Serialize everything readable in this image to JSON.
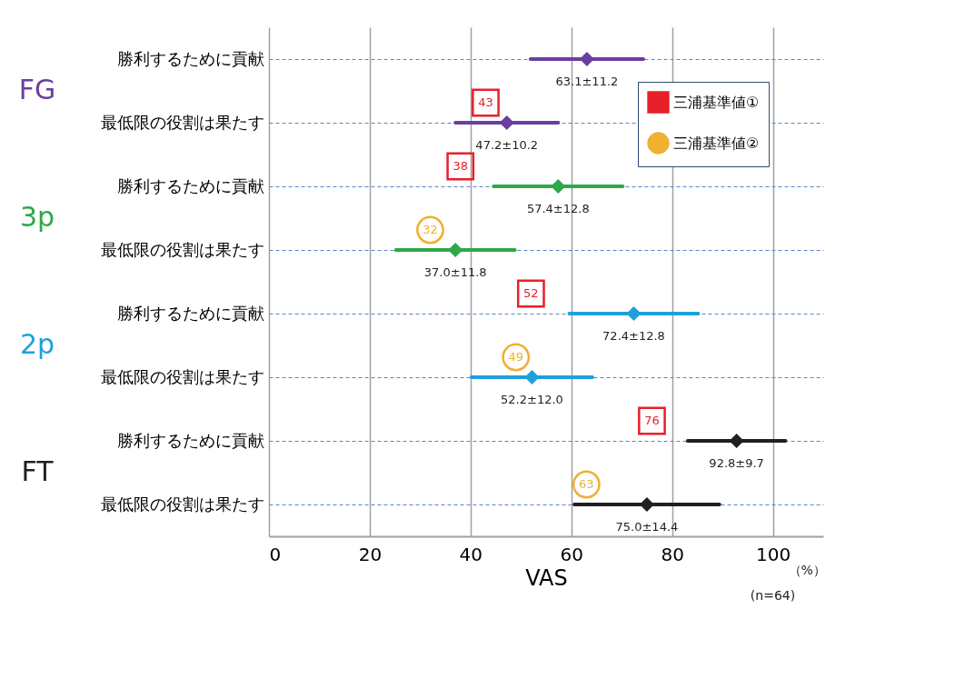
{
  "chart_data": {
    "type": "scatter",
    "orientation": "horizontal",
    "xlabel": "VAS",
    "xlim": [
      0,
      110
    ],
    "xticks": [
      0,
      20,
      40,
      60,
      80,
      100
    ],
    "grid": true,
    "marker": "diamond",
    "legend": "top right",
    "categories": [
      "勝利するために貢献",
      "最低限の役割は果たす",
      "勝利するために貢献",
      "最低限の役割は果たす",
      "勝利するために貢献",
      "最低限の役割は果たす",
      "勝利するために貢献",
      "最低限の役割は果たす"
    ],
    "series": [
      {
        "name": "FG",
        "color": "#6a3fa0",
        "values": [
          63.1,
          47.2,
          null,
          null,
          null,
          null,
          null,
          null
        ],
        "errors": [
          11.2,
          10.2,
          null,
          null,
          null,
          null,
          null,
          null
        ],
        "value_labels": [
          "63.1±11.2",
          "47.2±10.2",
          null,
          null,
          null,
          null,
          null,
          null
        ]
      },
      {
        "name": "3p",
        "color": "#2ea84a",
        "values": [
          null,
          null,
          57.4,
          37.0,
          null,
          null,
          null,
          null
        ],
        "errors": [
          null,
          null,
          12.8,
          11.8,
          null,
          null,
          null,
          null
        ],
        "value_labels": [
          null,
          null,
          "57.4±12.8",
          "37.0±11.8",
          null,
          null,
          null,
          null
        ]
      },
      {
        "name": "2p",
        "color": "#1ea0dc",
        "values": [
          null,
          null,
          null,
          null,
          72.4,
          52.2,
          null,
          null
        ],
        "errors": [
          null,
          null,
          null,
          null,
          12.8,
          12.0,
          null,
          null
        ],
        "value_labels": [
          null,
          null,
          null,
          null,
          "72.4±12.8",
          "52.2±12.0",
          null,
          null
        ]
      },
      {
        "name": "FT",
        "color": "#231f20",
        "values": [
          null,
          null,
          null,
          null,
          null,
          null,
          92.8,
          75.0
        ],
        "errors": [
          null,
          null,
          null,
          null,
          null,
          null,
          9.7,
          14.4
        ],
        "value_labels": [
          null,
          null,
          null,
          null,
          null,
          null,
          "92.8±9.7",
          "75.0±14.4"
        ]
      },
      {
        "name": "三浦基準値①",
        "color": "#e8202a",
        "marker": "square",
        "values": [
          null,
          43,
          38,
          null,
          52,
          null,
          76,
          null
        ],
        "value_labels": [
          null,
          "43",
          "38",
          null,
          "52",
          null,
          "76",
          null
        ]
      },
      {
        "name": "三浦基準値②",
        "color": "#f0b030",
        "marker": "circle",
        "values": [
          null,
          null,
          null,
          32,
          null,
          49,
          null,
          63
        ],
        "value_labels": [
          null,
          null,
          null,
          "32",
          null,
          "49",
          null,
          "63"
        ]
      }
    ],
    "annotations": [
      "（%）",
      "(n=64)"
    ]
  }
}
